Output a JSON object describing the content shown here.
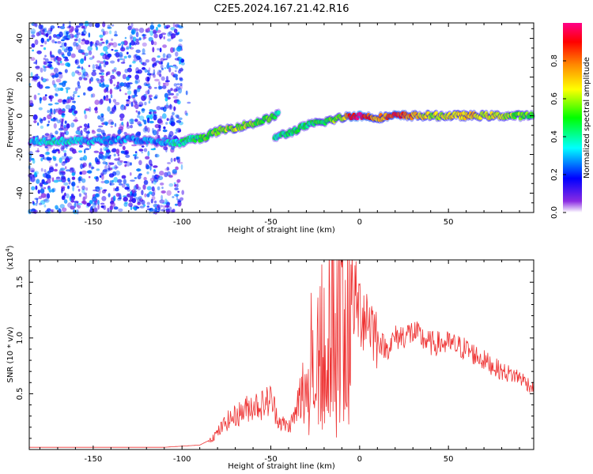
{
  "title": "C2E5.2024.167.21.42.R16",
  "colors": {
    "snr_line": "#ee3333",
    "frame": "#000000"
  },
  "chart_data": [
    {
      "type": "heatmap",
      "xlabel": "Height of straight line (km)",
      "ylabel": "Frequency (Hz)",
      "xlim": [
        -186,
        98
      ],
      "ylim": [
        -50,
        48
      ],
      "x_ticks": [
        -150,
        -100,
        -50,
        0,
        50
      ],
      "y_ticks": [
        -40,
        -20,
        0,
        20,
        40
      ],
      "colorbar": {
        "label": "Normalized spectral amplitude",
        "range": [
          0,
          1
        ],
        "ticks": [
          "0.0",
          "0.2",
          "0.4",
          "0.6",
          "0.8"
        ],
        "colors": [
          "#ffffff",
          "#8a2be2",
          "#0000ff",
          "#00ffff",
          "#00ff00",
          "#ffff00",
          "#ff8800",
          "#ff0000",
          "#ff0088"
        ]
      },
      "ridge": [
        {
          "x": -185,
          "freq": -13,
          "amp": 0.3
        },
        {
          "x": -170,
          "freq": -13,
          "amp": 0.38
        },
        {
          "x": -150,
          "freq": -13,
          "amp": 0.3
        },
        {
          "x": -130,
          "freq": -12,
          "amp": 0.28
        },
        {
          "x": -110,
          "freq": -14,
          "amp": 0.3
        },
        {
          "x": -100,
          "freq": -14,
          "amp": 0.4
        },
        {
          "x": -95,
          "freq": -12,
          "amp": 0.45
        },
        {
          "x": -90,
          "freq": -12,
          "amp": 0.5
        },
        {
          "x": -80,
          "freq": -8,
          "amp": 0.55
        },
        {
          "x": -70,
          "freq": -6,
          "amp": 0.6
        },
        {
          "x": -60,
          "freq": -4,
          "amp": 0.55
        },
        {
          "x": -50,
          "freq": -1,
          "amp": 0.5
        },
        {
          "x": -45,
          "freq": 1,
          "amp": 0.4
        },
        {
          "x": -48,
          "freq": -11,
          "amp": 0.4
        },
        {
          "x": -40,
          "freq": -9,
          "amp": 0.45
        },
        {
          "x": -30,
          "freq": -5,
          "amp": 0.45
        },
        {
          "x": -20,
          "freq": -3,
          "amp": 0.5
        },
        {
          "x": -10,
          "freq": -1,
          "amp": 0.6
        },
        {
          "x": -5,
          "freq": 0,
          "amp": 0.9
        },
        {
          "x": 0,
          "freq": 0,
          "amp": 1.0
        },
        {
          "x": 10,
          "freq": -1,
          "amp": 0.7
        },
        {
          "x": 20,
          "freq": 0,
          "amp": 0.9
        },
        {
          "x": 40,
          "freq": 0,
          "amp": 0.6
        },
        {
          "x": 60,
          "freq": 0,
          "amp": 0.7
        },
        {
          "x": 80,
          "freq": 0,
          "amp": 0.6
        },
        {
          "x": 98,
          "freq": 0,
          "amp": 0.5
        }
      ]
    },
    {
      "type": "line",
      "xlabel": "Height of straight line (km)",
      "ylabel": "SNR (10 * v/v)",
      "y_multiplier": "(x10^4)",
      "xlim": [
        -186,
        98
      ],
      "ylim": [
        0,
        1.7
      ],
      "x_ticks": [
        -150,
        -100,
        -50,
        0,
        50
      ],
      "y_ticks": [
        0.5,
        1.0,
        1.5
      ],
      "series": [
        {
          "color": "#ee3333",
          "x": [
            -186,
            -170,
            -150,
            -130,
            -110,
            -100,
            -90,
            -85,
            -80,
            -75,
            -70,
            -65,
            -60,
            -55,
            -50,
            -45,
            -40,
            -35,
            -30,
            -25,
            -20,
            -15,
            -10,
            -5,
            0,
            5,
            10,
            15,
            20,
            30,
            40,
            50,
            60,
            70,
            80,
            90,
            98
          ],
          "y": [
            0.02,
            0.02,
            0.02,
            0.02,
            0.02,
            0.03,
            0.04,
            0.08,
            0.15,
            0.25,
            0.3,
            0.35,
            0.4,
            0.4,
            0.45,
            0.25,
            0.2,
            0.35,
            0.6,
            1.0,
            1.15,
            1.2,
            1.25,
            1.4,
            1.25,
            1.2,
            1.0,
            0.9,
            1.0,
            1.05,
            0.95,
            0.95,
            0.9,
            0.8,
            0.7,
            0.65,
            0.55
          ]
        }
      ]
    }
  ]
}
